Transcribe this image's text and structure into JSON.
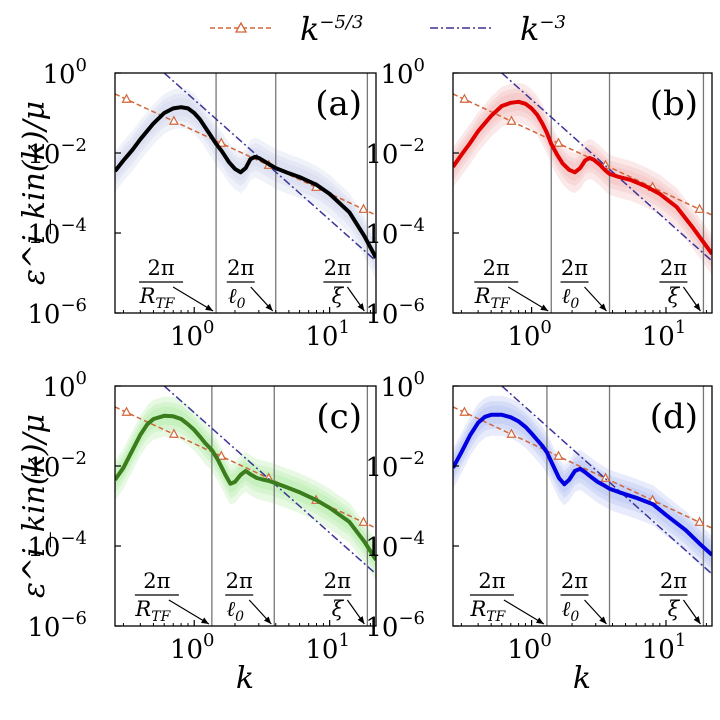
{
  "chart_data": {
    "type": "line",
    "x_scale": "log",
    "y_scale": "log",
    "xlim": [
      0.26,
      22
    ],
    "ylim": [
      1e-06,
      1
    ],
    "xlabel": "k",
    "ylabel": "ε^i_kin(k)/μ",
    "legend": {
      "placement": "top-center",
      "entries": [
        {
          "name": "k^{-5/3}",
          "base": "k",
          "exp": "−5/3",
          "color": "#d2663a",
          "style": "dashed-triangle"
        },
        {
          "name": "k^{-3}",
          "base": "k",
          "exp": "−3",
          "color": "#3b3499",
          "style": "dash-dot"
        }
      ]
    },
    "x_ticks": [
      {
        "base": "10",
        "exp": "0",
        "value": 1
      },
      {
        "base": "10",
        "exp": "1",
        "value": 10
      }
    ],
    "y_ticks": [
      {
        "base": "10",
        "exp": "0",
        "value": 1
      },
      {
        "base": "10",
        "exp": "−2",
        "value": 0.01
      },
      {
        "base": "10",
        "exp": "−4",
        "value": 0.0001
      },
      {
        "base": "10",
        "exp": "−6",
        "value": 1e-06
      }
    ],
    "reference_lines": {
      "k53": {
        "x": [
          0.26,
          22
        ],
        "y": [
          0.3,
          0.00028
        ]
      },
      "k3": {
        "x": [
          0.6,
          22
        ],
        "y": [
          1.0,
          2e-05
        ]
      }
    },
    "annotations": [
      {
        "num": "2π",
        "den": "R_TF",
        "den_base": "R",
        "den_sub": "TF"
      },
      {
        "num": "2π",
        "den": "ℓ_0",
        "den_base": "ℓ",
        "den_sub": "0"
      },
      {
        "num": "2π",
        "den": "ξ",
        "den_base": "ξ",
        "den_sub": ""
      }
    ],
    "panels": [
      {
        "label": "(a)",
        "color": "#000000",
        "band_color": "#c8d0e8",
        "vlines": [
          1.45,
          4.0,
          19.0
        ],
        "x": [
          0.26,
          0.3,
          0.35,
          0.4,
          0.5,
          0.6,
          0.7,
          0.8,
          0.9,
          1.0,
          1.1,
          1.2,
          1.3,
          1.45,
          1.6,
          1.8,
          2.0,
          2.2,
          2.4,
          2.6,
          2.8,
          3.0,
          3.3,
          3.6,
          4.0,
          5.0,
          6.0,
          8.0,
          10.0,
          14.0,
          18.0,
          22.0
        ],
        "y": [
          0.0035,
          0.0065,
          0.012,
          0.022,
          0.055,
          0.1,
          0.13,
          0.14,
          0.13,
          0.1,
          0.07,
          0.045,
          0.03,
          0.017,
          0.011,
          0.006,
          0.004,
          0.0033,
          0.0042,
          0.007,
          0.008,
          0.0075,
          0.0062,
          0.0052,
          0.0042,
          0.0031,
          0.0025,
          0.0016,
          0.00095,
          0.00033,
          8.5e-05,
          2.4e-05
        ]
      },
      {
        "label": "(b)",
        "color": "#e00000",
        "band_color": "#f2b0b0",
        "vlines": [
          1.4,
          3.8,
          19.0
        ],
        "x": [
          0.26,
          0.3,
          0.35,
          0.4,
          0.5,
          0.6,
          0.7,
          0.8,
          0.9,
          1.0,
          1.1,
          1.2,
          1.3,
          1.4,
          1.55,
          1.7,
          1.9,
          2.1,
          2.3,
          2.5,
          2.7,
          2.9,
          3.2,
          3.5,
          3.8,
          4.5,
          5.5,
          7.0,
          9.0,
          12.0,
          16.0,
          22.0
        ],
        "y": [
          0.0045,
          0.009,
          0.018,
          0.035,
          0.085,
          0.15,
          0.18,
          0.19,
          0.17,
          0.13,
          0.09,
          0.055,
          0.032,
          0.017,
          0.009,
          0.0055,
          0.0038,
          0.0033,
          0.0042,
          0.0065,
          0.0075,
          0.0068,
          0.0052,
          0.0038,
          0.003,
          0.0025,
          0.0021,
          0.0015,
          0.00095,
          0.00045,
          0.00013,
          3e-05
        ]
      },
      {
        "label": "(c)",
        "color": "#3a7d1c",
        "band_color": "#a8e89a",
        "vlines": [
          1.35,
          3.9,
          19.0
        ],
        "x": [
          0.26,
          0.3,
          0.35,
          0.4,
          0.45,
          0.5,
          0.6,
          0.7,
          0.8,
          0.9,
          1.0,
          1.1,
          1.2,
          1.35,
          1.5,
          1.7,
          1.85,
          2.0,
          2.2,
          2.4,
          2.6,
          2.9,
          3.2,
          3.6,
          3.9,
          4.5,
          6.0,
          8.0,
          10.0,
          14.0,
          18.0,
          22.0
        ],
        "y": [
          0.0045,
          0.009,
          0.025,
          0.06,
          0.11,
          0.15,
          0.18,
          0.175,
          0.15,
          0.11,
          0.08,
          0.055,
          0.038,
          0.025,
          0.014,
          0.006,
          0.0036,
          0.004,
          0.006,
          0.0075,
          0.0062,
          0.005,
          0.0046,
          0.0042,
          0.0038,
          0.0032,
          0.0022,
          0.0014,
          0.0009,
          0.0004,
          0.00013,
          4.5e-05
        ]
      },
      {
        "label": "(d)",
        "color": "#0000e0",
        "band_color": "#a8b8f0",
        "vlines": [
          1.3,
          3.8,
          19.0
        ],
        "x": [
          0.26,
          0.3,
          0.35,
          0.4,
          0.45,
          0.5,
          0.6,
          0.7,
          0.8,
          0.9,
          1.0,
          1.1,
          1.2,
          1.3,
          1.45,
          1.6,
          1.75,
          1.9,
          2.1,
          2.3,
          2.5,
          2.8,
          3.1,
          3.5,
          3.8,
          4.5,
          6.0,
          8.0,
          10.0,
          14.0,
          18.0,
          22.0
        ],
        "y": [
          0.009,
          0.022,
          0.06,
          0.12,
          0.17,
          0.19,
          0.19,
          0.165,
          0.13,
          0.095,
          0.065,
          0.045,
          0.032,
          0.022,
          0.01,
          0.005,
          0.0035,
          0.0045,
          0.0075,
          0.0085,
          0.007,
          0.0052,
          0.004,
          0.0032,
          0.0027,
          0.0022,
          0.0016,
          0.0011,
          0.0006,
          0.00025,
          0.00011,
          6e-05
        ]
      }
    ]
  }
}
